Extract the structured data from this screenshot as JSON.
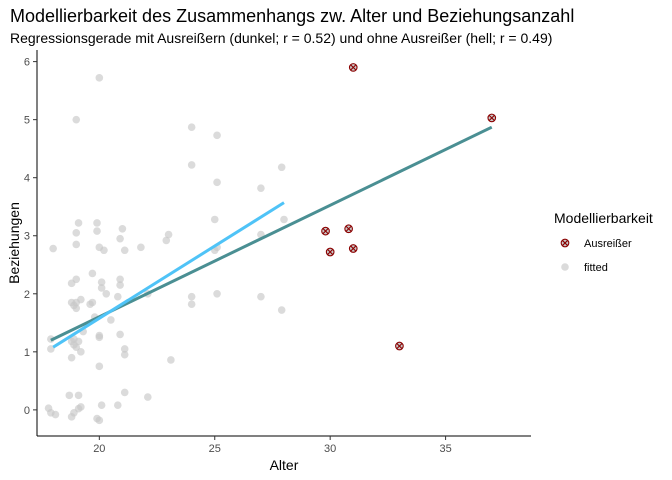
{
  "chart_data": {
    "type": "scatter",
    "title": "Modellierbarkeit des Zusammenhangs zw. Alter und Beziehungsanzahl",
    "subtitle": "Regressionsgerade mit Ausreißern (dunkel; r = 0.52) und ohne Ausreißer (hell; r = 0.49)",
    "xlabel": "Alter",
    "ylabel": "Beziehungen",
    "xlim": [
      17.3,
      38.7
    ],
    "ylim": [
      -0.45,
      6.2
    ],
    "xticks": [
      "20",
      "25",
      "30",
      "35"
    ],
    "yticks": [
      "0",
      "1",
      "2",
      "3",
      "4",
      "5",
      "6"
    ],
    "grid": false,
    "legend": {
      "title": "Modellierbarkeit",
      "position": "right",
      "entries": [
        "Ausreißer",
        "fitted"
      ]
    },
    "colors": {
      "fitted": "#c8c8c8",
      "outlier_fill": "#c8c8c8",
      "outlier_border": "#8b0000",
      "line_with_outliers": "#4a8f93",
      "line_without_outliers": "#4fc3f7"
    },
    "series": [
      {
        "name": "fitted",
        "points": [
          [
            17.9,
            -0.05
          ],
          [
            17.8,
            0.03
          ],
          [
            18.1,
            -0.08
          ],
          [
            17.9,
            1.22
          ],
          [
            17.9,
            1.05
          ],
          [
            18.0,
            2.78
          ],
          [
            18.7,
            0.25
          ],
          [
            18.8,
            -0.12
          ],
          [
            18.9,
            -0.05
          ],
          [
            19.2,
            0.05
          ],
          [
            19.1,
            0.02
          ],
          [
            18.8,
            1.18
          ],
          [
            18.9,
            1.12
          ],
          [
            19.0,
            1.08
          ],
          [
            19.2,
            1.0
          ],
          [
            18.8,
            0.9
          ],
          [
            18.9,
            1.22
          ],
          [
            19.1,
            1.18
          ],
          [
            18.8,
            1.85
          ],
          [
            18.9,
            1.8
          ],
          [
            19.0,
            1.75
          ],
          [
            19.2,
            1.9
          ],
          [
            19.0,
            1.85
          ],
          [
            18.8,
            2.18
          ],
          [
            19.0,
            2.25
          ],
          [
            19.0,
            2.85
          ],
          [
            19.0,
            3.05
          ],
          [
            19.1,
            3.22
          ],
          [
            19.0,
            5.0
          ],
          [
            19.1,
            0.25
          ],
          [
            19.3,
            1.35
          ],
          [
            19.6,
            1.82
          ],
          [
            19.7,
            1.85
          ],
          [
            19.8,
            1.6
          ],
          [
            19.9,
            3.22
          ],
          [
            19.9,
            3.08
          ],
          [
            19.7,
            2.35
          ],
          [
            20.0,
            1.25
          ],
          [
            20.0,
            1.28
          ],
          [
            20.0,
            0.75
          ],
          [
            19.9,
            -0.15
          ],
          [
            20.0,
            -0.18
          ],
          [
            20.2,
            2.75
          ],
          [
            20.3,
            2.0
          ],
          [
            20.5,
            1.55
          ],
          [
            20.1,
            2.2
          ],
          [
            20.1,
            2.1
          ],
          [
            20.0,
            2.8
          ],
          [
            20.0,
            5.72
          ],
          [
            20.1,
            0.08
          ],
          [
            20.8,
            0.08
          ],
          [
            20.9,
            1.3
          ],
          [
            20.8,
            1.95
          ],
          [
            20.9,
            2.25
          ],
          [
            20.9,
            2.15
          ],
          [
            21.0,
            3.12
          ],
          [
            20.9,
            2.95
          ],
          [
            21.1,
            2.75
          ],
          [
            21.1,
            1.05
          ],
          [
            21.1,
            0.95
          ],
          [
            21.1,
            0.3
          ],
          [
            21.8,
            2.8
          ],
          [
            22.1,
            0.22
          ],
          [
            22.1,
            2.0
          ],
          [
            22.9,
            2.92
          ],
          [
            23.0,
            3.02
          ],
          [
            23.1,
            0.86
          ],
          [
            24.0,
            4.22
          ],
          [
            24.0,
            4.87
          ],
          [
            24.0,
            1.95
          ],
          [
            24.0,
            1.82
          ],
          [
            25.0,
            3.28
          ],
          [
            25.1,
            3.92
          ],
          [
            25.1,
            2.8
          ],
          [
            25.1,
            2.0
          ],
          [
            25.1,
            4.73
          ],
          [
            25.0,
            2.75
          ],
          [
            27.0,
            3.02
          ],
          [
            27.0,
            3.82
          ],
          [
            27.0,
            1.95
          ],
          [
            27.9,
            4.18
          ],
          [
            27.9,
            1.72
          ],
          [
            28.0,
            3.28
          ]
        ]
      },
      {
        "name": "Ausreißer",
        "points": [
          [
            31.0,
            5.9
          ],
          [
            37.0,
            5.03
          ],
          [
            29.8,
            3.08
          ],
          [
            30.8,
            3.12
          ],
          [
            30.0,
            2.72
          ],
          [
            31.0,
            2.78
          ],
          [
            33.0,
            1.1
          ]
        ]
      }
    ],
    "lines": [
      {
        "name": "mit Ausreißern",
        "x": [
          17.9,
          37.0
        ],
        "y": [
          1.2,
          4.87
        ]
      },
      {
        "name": "ohne Ausreißer",
        "x": [
          18.0,
          28.0
        ],
        "y": [
          1.08,
          3.57
        ]
      }
    ]
  }
}
